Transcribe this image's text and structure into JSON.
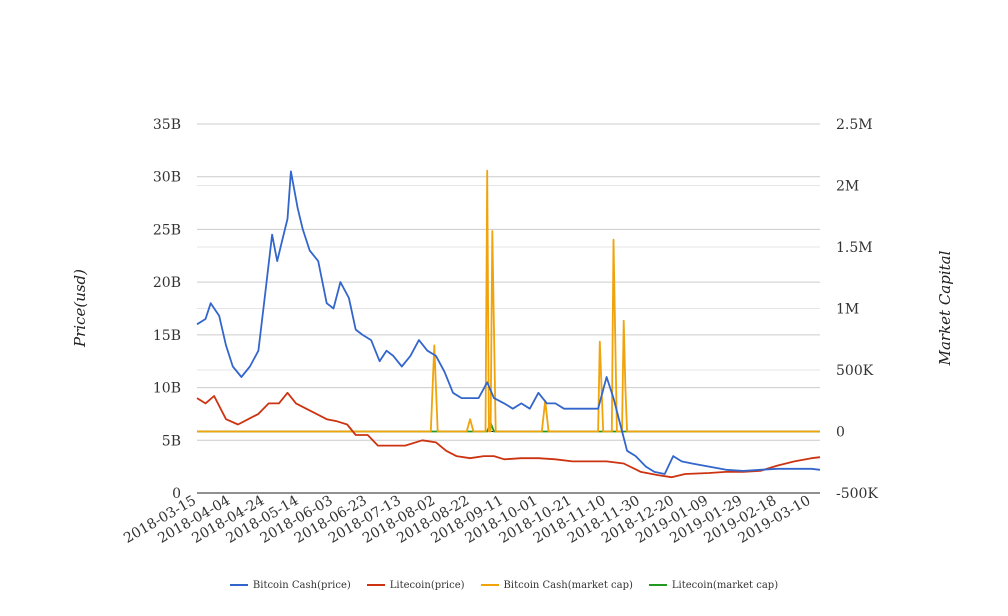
{
  "chart_data": {
    "type": "line",
    "xlabel": "",
    "ylabel_left": "Price(usd)",
    "ylabel_right": "Market Capital",
    "left_axis": {
      "ylim": [
        0,
        35
      ],
      "ticks": [
        0,
        5,
        10,
        15,
        20,
        25,
        30,
        35
      ],
      "tick_labels": [
        "0",
        "5B",
        "10B",
        "15B",
        "20B",
        "25B",
        "30B",
        "35B"
      ]
    },
    "right_axis": {
      "ylim": [
        -500,
        2500
      ],
      "ticks": [
        -500,
        0,
        500,
        1000,
        1500,
        2000,
        2500
      ],
      "tick_labels": [
        "-500K",
        "0",
        "500K",
        "1M",
        "1.5M",
        "2M",
        "2.5M"
      ]
    },
    "x_tick_labels": [
      "2018-03-15",
      "2018-04-04",
      "2018-04-24",
      "2018-05-14",
      "2018-06-03",
      "2018-06-23",
      "2018-07-13",
      "2018-08-02",
      "2018-08-22",
      "2018-09-11",
      "2018-10-01",
      "2018-10-21",
      "2018-11-10",
      "2018-11-30",
      "2018-12-20",
      "2019-01-09",
      "2019-01-29",
      "2019-02-18",
      "2019-03-10"
    ],
    "x_range": [
      "2018-03-15",
      "2019-03-15"
    ],
    "grid": true,
    "legend_position": "bottom",
    "series": [
      {
        "name": "Bitcoin Cash(price)",
        "axis": "left",
        "color": "#3366cc",
        "points": [
          [
            "2018-03-15",
            16.0
          ],
          [
            "2018-03-20",
            16.5
          ],
          [
            "2018-03-23",
            18.0
          ],
          [
            "2018-03-28",
            16.8
          ],
          [
            "2018-04-01",
            14.0
          ],
          [
            "2018-04-05",
            12.0
          ],
          [
            "2018-04-10",
            11.0
          ],
          [
            "2018-04-15",
            12.0
          ],
          [
            "2018-04-20",
            13.5
          ],
          [
            "2018-04-24",
            19.0
          ],
          [
            "2018-04-28",
            24.5
          ],
          [
            "2018-05-01",
            22.0
          ],
          [
            "2018-05-04",
            24.0
          ],
          [
            "2018-05-07",
            26.0
          ],
          [
            "2018-05-09",
            30.5
          ],
          [
            "2018-05-13",
            27.0
          ],
          [
            "2018-05-16",
            25.0
          ],
          [
            "2018-05-20",
            23.0
          ],
          [
            "2018-05-25",
            22.0
          ],
          [
            "2018-05-30",
            18.0
          ],
          [
            "2018-06-03",
            17.5
          ],
          [
            "2018-06-07",
            20.0
          ],
          [
            "2018-06-12",
            18.5
          ],
          [
            "2018-06-16",
            15.5
          ],
          [
            "2018-06-20",
            15.0
          ],
          [
            "2018-06-25",
            14.5
          ],
          [
            "2018-06-30",
            12.5
          ],
          [
            "2018-07-04",
            13.5
          ],
          [
            "2018-07-08",
            13.0
          ],
          [
            "2018-07-13",
            12.0
          ],
          [
            "2018-07-18",
            13.0
          ],
          [
            "2018-07-23",
            14.5
          ],
          [
            "2018-07-28",
            13.5
          ],
          [
            "2018-08-02",
            13.0
          ],
          [
            "2018-08-07",
            11.5
          ],
          [
            "2018-08-12",
            9.5
          ],
          [
            "2018-08-17",
            9.0
          ],
          [
            "2018-08-22",
            9.0
          ],
          [
            "2018-08-27",
            9.0
          ],
          [
            "2018-09-01",
            10.5
          ],
          [
            "2018-09-05",
            9.0
          ],
          [
            "2018-09-11",
            8.5
          ],
          [
            "2018-09-16",
            8.0
          ],
          [
            "2018-09-21",
            8.5
          ],
          [
            "2018-09-26",
            8.0
          ],
          [
            "2018-10-01",
            9.5
          ],
          [
            "2018-10-06",
            8.5
          ],
          [
            "2018-10-11",
            8.5
          ],
          [
            "2018-10-16",
            8.0
          ],
          [
            "2018-10-21",
            8.0
          ],
          [
            "2018-10-26",
            8.0
          ],
          [
            "2018-10-31",
            8.0
          ],
          [
            "2018-11-05",
            8.0
          ],
          [
            "2018-11-10",
            11.0
          ],
          [
            "2018-11-14",
            9.0
          ],
          [
            "2018-11-18",
            6.5
          ],
          [
            "2018-11-22",
            4.0
          ],
          [
            "2018-11-27",
            3.5
          ],
          [
            "2018-12-03",
            2.5
          ],
          [
            "2018-12-08",
            2.0
          ],
          [
            "2018-12-14",
            1.8
          ],
          [
            "2018-12-19",
            3.5
          ],
          [
            "2018-12-24",
            3.0
          ],
          [
            "2018-12-30",
            2.8
          ],
          [
            "2019-01-09",
            2.5
          ],
          [
            "2019-01-19",
            2.2
          ],
          [
            "2019-01-29",
            2.1
          ],
          [
            "2019-02-08",
            2.2
          ],
          [
            "2019-02-18",
            2.3
          ],
          [
            "2019-02-28",
            2.3
          ],
          [
            "2019-03-10",
            2.3
          ],
          [
            "2019-03-15",
            2.2
          ]
        ]
      },
      {
        "name": "Litecoin(price)",
        "axis": "left",
        "color": "#cc3311",
        "points": [
          [
            "2018-03-15",
            9.0
          ],
          [
            "2018-03-20",
            8.5
          ],
          [
            "2018-03-25",
            9.2
          ],
          [
            "2018-04-01",
            7.0
          ],
          [
            "2018-04-08",
            6.5
          ],
          [
            "2018-04-14",
            7.0
          ],
          [
            "2018-04-20",
            7.5
          ],
          [
            "2018-04-26",
            8.5
          ],
          [
            "2018-05-02",
            8.5
          ],
          [
            "2018-05-07",
            9.5
          ],
          [
            "2018-05-12",
            8.5
          ],
          [
            "2018-05-18",
            8.0
          ],
          [
            "2018-05-24",
            7.5
          ],
          [
            "2018-05-30",
            7.0
          ],
          [
            "2018-06-05",
            6.8
          ],
          [
            "2018-06-11",
            6.5
          ],
          [
            "2018-06-16",
            5.5
          ],
          [
            "2018-06-23",
            5.5
          ],
          [
            "2018-06-29",
            4.5
          ],
          [
            "2018-07-07",
            4.5
          ],
          [
            "2018-07-15",
            4.5
          ],
          [
            "2018-07-25",
            5.0
          ],
          [
            "2018-08-02",
            4.8
          ],
          [
            "2018-08-08",
            4.0
          ],
          [
            "2018-08-14",
            3.5
          ],
          [
            "2018-08-22",
            3.3
          ],
          [
            "2018-08-30",
            3.5
          ],
          [
            "2018-09-05",
            3.5
          ],
          [
            "2018-09-11",
            3.2
          ],
          [
            "2018-09-21",
            3.3
          ],
          [
            "2018-10-01",
            3.3
          ],
          [
            "2018-10-11",
            3.2
          ],
          [
            "2018-10-21",
            3.0
          ],
          [
            "2018-11-01",
            3.0
          ],
          [
            "2018-11-10",
            3.0
          ],
          [
            "2018-11-20",
            2.8
          ],
          [
            "2018-11-30",
            2.0
          ],
          [
            "2018-12-10",
            1.7
          ],
          [
            "2018-12-18",
            1.5
          ],
          [
            "2018-12-26",
            1.8
          ],
          [
            "2019-01-09",
            1.9
          ],
          [
            "2019-01-19",
            2.0
          ],
          [
            "2019-01-29",
            2.0
          ],
          [
            "2019-02-08",
            2.1
          ],
          [
            "2019-02-18",
            2.6
          ],
          [
            "2019-02-28",
            3.0
          ],
          [
            "2019-03-10",
            3.3
          ],
          [
            "2019-03-15",
            3.4
          ]
        ]
      },
      {
        "name": "Bitcoin Cash(market cap)",
        "axis": "right",
        "color": "#f0a30a",
        "points": [
          [
            "2018-03-15",
            0
          ],
          [
            "2018-07-30",
            0
          ],
          [
            "2018-08-01",
            700
          ],
          [
            "2018-08-03",
            0
          ],
          [
            "2018-08-20",
            0
          ],
          [
            "2018-08-22",
            100
          ],
          [
            "2018-08-24",
            0
          ],
          [
            "2018-08-31",
            0
          ],
          [
            "2018-09-01",
            2120
          ],
          [
            "2018-09-02",
            0
          ],
          [
            "2018-09-03",
            0
          ],
          [
            "2018-09-04",
            1630
          ],
          [
            "2018-09-06",
            0
          ],
          [
            "2018-10-03",
            0
          ],
          [
            "2018-10-05",
            250
          ],
          [
            "2018-10-07",
            0
          ],
          [
            "2018-11-05",
            0
          ],
          [
            "2018-11-06",
            730
          ],
          [
            "2018-11-08",
            0
          ],
          [
            "2018-11-13",
            0
          ],
          [
            "2018-11-14",
            1560
          ],
          [
            "2018-11-16",
            0
          ],
          [
            "2018-11-19",
            0
          ],
          [
            "2018-11-20",
            900
          ],
          [
            "2018-11-21",
            350
          ],
          [
            "2018-11-22",
            0
          ],
          [
            "2019-03-15",
            0
          ]
        ]
      },
      {
        "name": "Litecoin(market cap)",
        "axis": "right",
        "color": "#229922",
        "points": [
          [
            "2018-03-15",
            0
          ],
          [
            "2018-09-01",
            0
          ],
          [
            "2018-09-03",
            70
          ],
          [
            "2018-09-05",
            0
          ],
          [
            "2019-03-15",
            0
          ]
        ]
      }
    ]
  }
}
